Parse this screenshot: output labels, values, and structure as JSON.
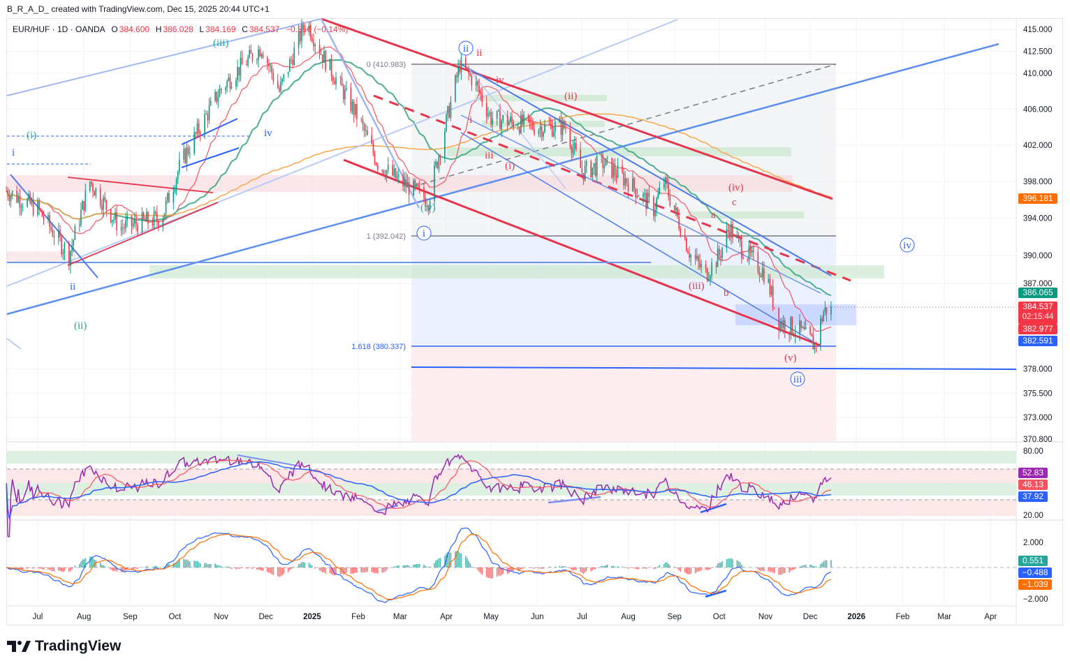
{
  "credit": "B_R_A_D_ created with TradingView.com, Dec 15, 2025 20:44 UTC+1",
  "legend": {
    "symbol": "EUR/HUF · 1D · OANDA",
    "o_label": "O",
    "o": "384.600",
    "h_label": "H",
    "h": "386.028",
    "l_label": "L",
    "l": "384.169",
    "c_label": "C",
    "c": "384.537",
    "change": "−0.556 (−0.14%)"
  },
  "colors": {
    "up": "#089981",
    "down": "#f23645",
    "accent_blue": "#2962ff",
    "red_line": "#e8344a",
    "orange": "#f7931a",
    "purple": "#9c27b0"
  },
  "price_axis": [
    "415.000",
    "412.500",
    "410.000",
    "406.000",
    "402.000",
    "398.000",
    "394.000",
    "390.000",
    "387.000",
    "378.000",
    "375.500",
    "373.000",
    "370.800"
  ],
  "price_badges": {
    "level_396": "396.181",
    "ma": "386.065",
    "last": "384.537",
    "countdown": "02:15:44",
    "ma2": "382.977",
    "ma3": "382.591"
  },
  "rsi_axis": [
    "80.00",
    "20.00"
  ],
  "rsi_badges": [
    "52.83",
    "46.13",
    "37.92"
  ],
  "macd_axis": [
    "2.000",
    "−2.000"
  ],
  "macd_badges": [
    "0.551",
    "−0.488",
    "−1.039"
  ],
  "time_axis": [
    "Jul",
    "Aug",
    "Sep",
    "Oct",
    "Nov",
    "Dec",
    "2025",
    "Feb",
    "Mar",
    "Apr",
    "May",
    "Jun",
    "Jul",
    "Aug",
    "Sep",
    "Oct",
    "Nov",
    "Dec",
    "2026",
    "Feb",
    "Mar",
    "Apr"
  ],
  "fib": {
    "f0": "0 (410.983)",
    "f1": "1 (392.042)",
    "f1618": "1.618 (380.337)"
  },
  "waves": {
    "g_iii": "(iii)",
    "g_i": "(i)",
    "b_i": "i",
    "b_ii": "ii",
    "g_ii": "(ii)",
    "b_iv": "iv",
    "g_iv": "(iv)",
    "c_ii": "ii",
    "r_ii_small": "ii",
    "c_i": "i",
    "r_iv_small": "iv",
    "r_ii": "(ii)",
    "r_iii_small": "iii",
    "r_i": "(i)",
    "r_i_small": "i",
    "r_iv": "(iv)",
    "r_c": "c",
    "r_a": "a",
    "r_iii": "(iii)",
    "r_b": "b",
    "r_v": "(v)",
    "c_iii": "iii",
    "c_iv": "iv"
  },
  "logo": "TradingView",
  "chart_data": {
    "type": "candlestick",
    "title": "EUR/HUF · 1D · OANDA",
    "scale": "log",
    "ylim": [
      370.8,
      416.5
    ],
    "close_path": [
      [
        "2024-06-10",
        397
      ],
      [
        "2024-07-01",
        395
      ],
      [
        "2024-07-22",
        390
      ],
      [
        "2024-08-05",
        398
      ],
      [
        "2024-08-25",
        393
      ],
      [
        "2024-09-22",
        394
      ],
      [
        "2024-10-05",
        400
      ],
      [
        "2024-10-31",
        408
      ],
      [
        "2024-11-10",
        410
      ],
      [
        "2024-11-28",
        413
      ],
      [
        "2024-12-10",
        408
      ],
      [
        "2024-12-28",
        416
      ],
      [
        "2025-01-08",
        412
      ],
      [
        "2025-02-01",
        405
      ],
      [
        "2025-02-14",
        400
      ],
      [
        "2025-03-01",
        398
      ],
      [
        "2025-03-20",
        396
      ],
      [
        "2025-04-10",
        411
      ],
      [
        "2025-04-20",
        409
      ],
      [
        "2025-05-01",
        405
      ],
      [
        "2025-06-01",
        404
      ],
      [
        "2025-06-20",
        404
      ],
      [
        "2025-07-01",
        399
      ],
      [
        "2025-07-15",
        400
      ],
      [
        "2025-08-01",
        398
      ],
      [
        "2025-08-18",
        395
      ],
      [
        "2025-08-25",
        398
      ],
      [
        "2025-09-12",
        390
      ],
      [
        "2025-09-22",
        388
      ],
      [
        "2025-10-01",
        390
      ],
      [
        "2025-10-08",
        393
      ],
      [
        "2025-10-15",
        391
      ],
      [
        "2025-11-01",
        388
      ],
      [
        "2025-11-10",
        383
      ],
      [
        "2025-11-24",
        382
      ],
      [
        "2025-12-04",
        380.5
      ],
      [
        "2025-12-10",
        384
      ],
      [
        "2025-12-15",
        384.537
      ]
    ],
    "indicators": [
      "SMA 20",
      "SMA 50",
      "SMA 200",
      "RSI 14",
      "MACD 12 26 9"
    ],
    "fib_levels": [
      {
        "ratio": 0,
        "price": 410.983
      },
      {
        "ratio": 1,
        "price": 392.042
      },
      {
        "ratio": 1.618,
        "price": 380.337
      }
    ],
    "rsi_range": [
      0,
      100
    ],
    "last_rsi": 52.83,
    "macd_last": {
      "hist": 0.551,
      "macd": -0.488,
      "signal": -1.039
    }
  }
}
